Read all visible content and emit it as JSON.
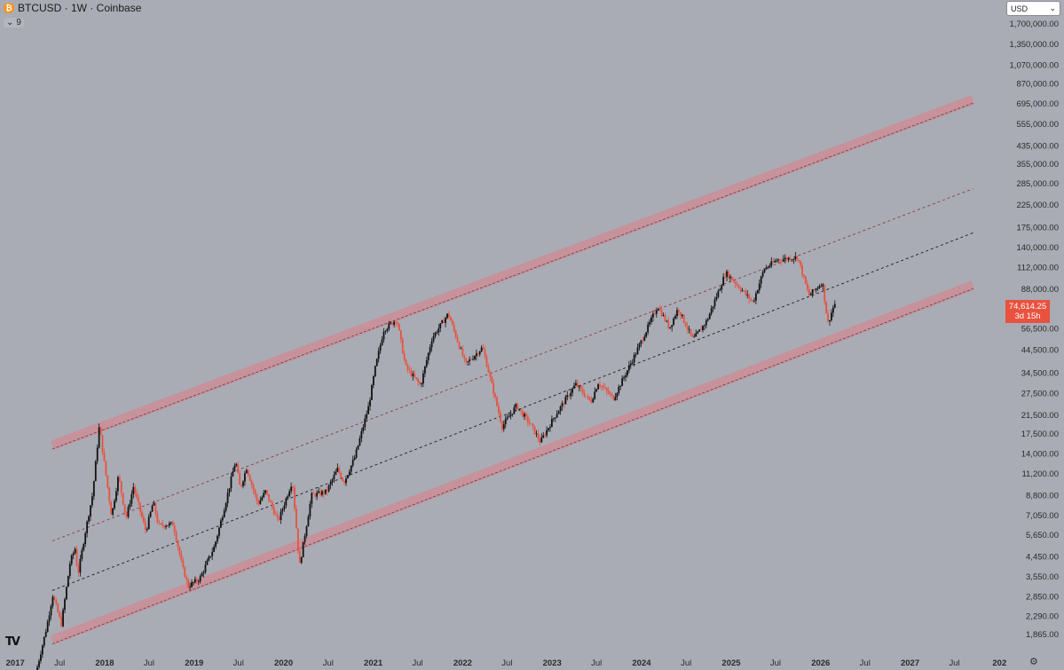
{
  "header": {
    "coin_symbol": "₿",
    "title": "BTCUSD · 1W · Coinbase",
    "indicator_toggle": "⌄",
    "indicator_count": "9"
  },
  "currency_select": {
    "value": "USD",
    "arrow": "⌄"
  },
  "price_tag": {
    "price": "74,614.25",
    "countdown": "3d 15h"
  },
  "settings_icon": "⚙",
  "logo_text": "TV",
  "colors": {
    "background": "#a9acb5",
    "candle_up": "#111111",
    "candle_down": "#e8523f",
    "band": "#c98f98",
    "band_edge": "#6b3a42",
    "mid_line": "#1e1e1e",
    "inner_line": "#8d3a45"
  },
  "chart_data": {
    "type": "candlestick",
    "yscale": "log",
    "ylim": [
      1650,
      2000000
    ],
    "x_axis_ticks": [
      "2017",
      "Jul",
      "2018",
      "Jul",
      "2019",
      "Jul",
      "2020",
      "Jul",
      "2021",
      "Jul",
      "2022",
      "Jul",
      "2023",
      "Jul",
      "2024",
      "Jul",
      "2025",
      "Jul",
      "2026",
      "Jul",
      "2027",
      "Jul",
      "202"
    ],
    "y_axis_ticks": [
      "1,700,000.00",
      "1,350,000.00",
      "1,070,000.00",
      "870,000.00",
      "695,000.00",
      "555,000.00",
      "435,000.00",
      "355,000.00",
      "285,000.00",
      "225,000.00",
      "175,000.00",
      "140,000.00",
      "112,000.00",
      "88,000.00",
      "56,500.00",
      "44,500.00",
      "34,500.00",
      "27,500.00",
      "21,500.00",
      "17,500.00",
      "14,000.00",
      "11,200.00",
      "8,800.00",
      "7,050.00",
      "5,650.00",
      "4,450.00",
      "3,550.00",
      "2,850.00",
      "2,290.00",
      "1,865.00"
    ],
    "y_axis_tick_values": [
      1700000,
      1350000,
      1070000,
      870000,
      695000,
      555000,
      435000,
      355000,
      285000,
      225000,
      175000,
      140000,
      112000,
      88000,
      56500,
      44500,
      34500,
      27500,
      21500,
      17500,
      14000,
      11200,
      8800,
      7050,
      5650,
      4450,
      3550,
      2850,
      2290,
      1865
    ],
    "last_price": 74614.25,
    "price_path": [
      [
        "2017-04-01",
        1200
      ],
      [
        "2017-05-15",
        2000
      ],
      [
        "2017-06-10",
        2900
      ],
      [
        "2017-07-15",
        2100
      ],
      [
        "2017-08-20",
        4200
      ],
      [
        "2017-09-10",
        4900
      ],
      [
        "2017-09-20",
        3600
      ],
      [
        "2017-10-20",
        5800
      ],
      [
        "2017-11-20",
        9000
      ],
      [
        "2017-12-17",
        19200
      ],
      [
        "2018-01-01",
        14000
      ],
      [
        "2018-02-05",
        7000
      ],
      [
        "2018-03-05",
        11000
      ],
      [
        "2018-04-05",
        6800
      ],
      [
        "2018-05-05",
        9700
      ],
      [
        "2018-06-25",
        5900
      ],
      [
        "2018-07-25",
        8200
      ],
      [
        "2018-08-15",
        6300
      ],
      [
        "2018-10-15",
        6400
      ],
      [
        "2018-11-20",
        4000
      ],
      [
        "2018-12-15",
        3200
      ],
      [
        "2019-02-01",
        3500
      ],
      [
        "2019-04-01",
        5000
      ],
      [
        "2019-05-15",
        8000
      ],
      [
        "2019-06-26",
        13000
      ],
      [
        "2019-07-15",
        9500
      ],
      [
        "2019-08-10",
        12000
      ],
      [
        "2019-09-25",
        8000
      ],
      [
        "2019-10-26",
        9200
      ],
      [
        "2019-12-17",
        6600
      ],
      [
        "2020-02-13",
        10400
      ],
      [
        "2020-03-13",
        4000
      ],
      [
        "2020-05-01",
        8800
      ],
      [
        "2020-07-01",
        9200
      ],
      [
        "2020-08-15",
        11800
      ],
      [
        "2020-09-10",
        10200
      ],
      [
        "2020-10-25",
        13500
      ],
      [
        "2020-12-20",
        23800
      ],
      [
        "2021-01-15",
        36000
      ],
      [
        "2021-02-20",
        56000
      ],
      [
        "2021-04-14",
        63000
      ],
      [
        "2021-05-20",
        37000
      ],
      [
        "2021-07-20",
        30000
      ],
      [
        "2021-09-05",
        51000
      ],
      [
        "2021-11-10",
        67000
      ],
      [
        "2022-01-20",
        38000
      ],
      [
        "2022-03-30",
        46000
      ],
      [
        "2022-06-18",
        19000
      ],
      [
        "2022-08-15",
        24000
      ],
      [
        "2022-10-15",
        19200
      ],
      [
        "2022-11-21",
        16000
      ],
      [
        "2023-01-15",
        21000
      ],
      [
        "2023-04-14",
        30500
      ],
      [
        "2023-06-15",
        25000
      ],
      [
        "2023-07-15",
        31000
      ],
      [
        "2023-09-15",
        26000
      ],
      [
        "2023-12-15",
        43000
      ],
      [
        "2024-03-14",
        73000
      ],
      [
        "2024-05-01",
        57000
      ],
      [
        "2024-06-05",
        71000
      ],
      [
        "2024-08-05",
        50000
      ],
      [
        "2024-10-01",
        62000
      ],
      [
        "2024-12-17",
        106000
      ],
      [
        "2025-04-07",
        76000
      ],
      [
        "2025-05-22",
        110000
      ],
      [
        "2025-07-14",
        122000
      ],
      [
        "2025-10-06",
        126000
      ],
      [
        "2025-11-21",
        82000
      ],
      [
        "2026-01-15",
        95000
      ],
      [
        "2026-02-06",
        60000
      ],
      [
        "2026-03-05",
        74614
      ]
    ],
    "overlays": [
      {
        "name": "upper band",
        "style": "band",
        "from": [
          "2017-06-01",
          15400
        ],
        "to": [
          "2027-09-15",
          730000
        ]
      },
      {
        "name": "inner upper line",
        "style": "dashed",
        "from": [
          "2017-06-01",
          5300
        ],
        "to": [
          "2027-09-15",
          270000
        ]
      },
      {
        "name": "middle line",
        "style": "dashed",
        "from": [
          "2017-06-01",
          3050
        ],
        "to": [
          "2027-09-15",
          165000
        ]
      },
      {
        "name": "lower band",
        "style": "band",
        "from": [
          "2017-06-01",
          1750
        ],
        "to": [
          "2027-09-15",
          92000
        ]
      }
    ]
  }
}
